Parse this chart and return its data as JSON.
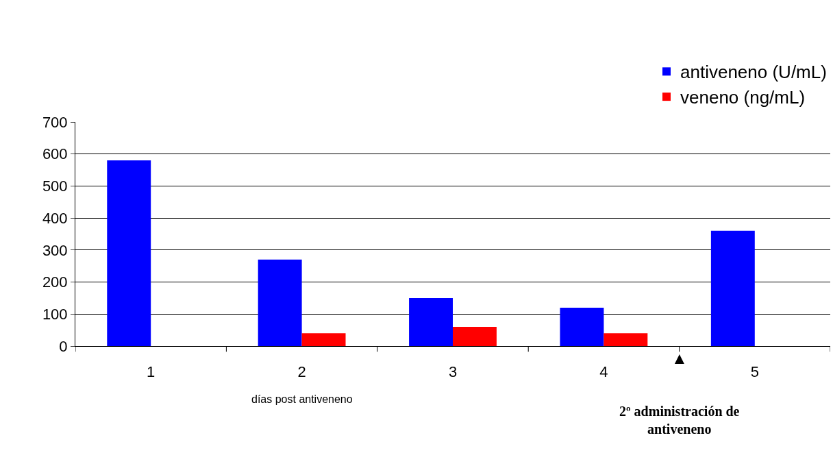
{
  "chart_data": {
    "type": "bar",
    "categories": [
      "1",
      "2",
      "3",
      "4",
      "5"
    ],
    "series": [
      {
        "name": "antiveneno (U/mL)",
        "color": "#0000ff",
        "values": [
          580,
          270,
          150,
          120,
          360
        ]
      },
      {
        "name": "veneno (ng/mL)",
        "color": "#ff0000",
        "values": [
          null,
          40,
          60,
          40,
          null
        ]
      }
    ],
    "xlabel": "días post antiveneno",
    "annotations": [
      "▲",
      "2º administración de antiveneno"
    ],
    "ylim": [
      0,
      700
    ],
    "yticks": [
      0,
      100,
      200,
      300,
      400,
      500,
      600,
      700
    ],
    "grid": "y",
    "legend": "top right"
  }
}
